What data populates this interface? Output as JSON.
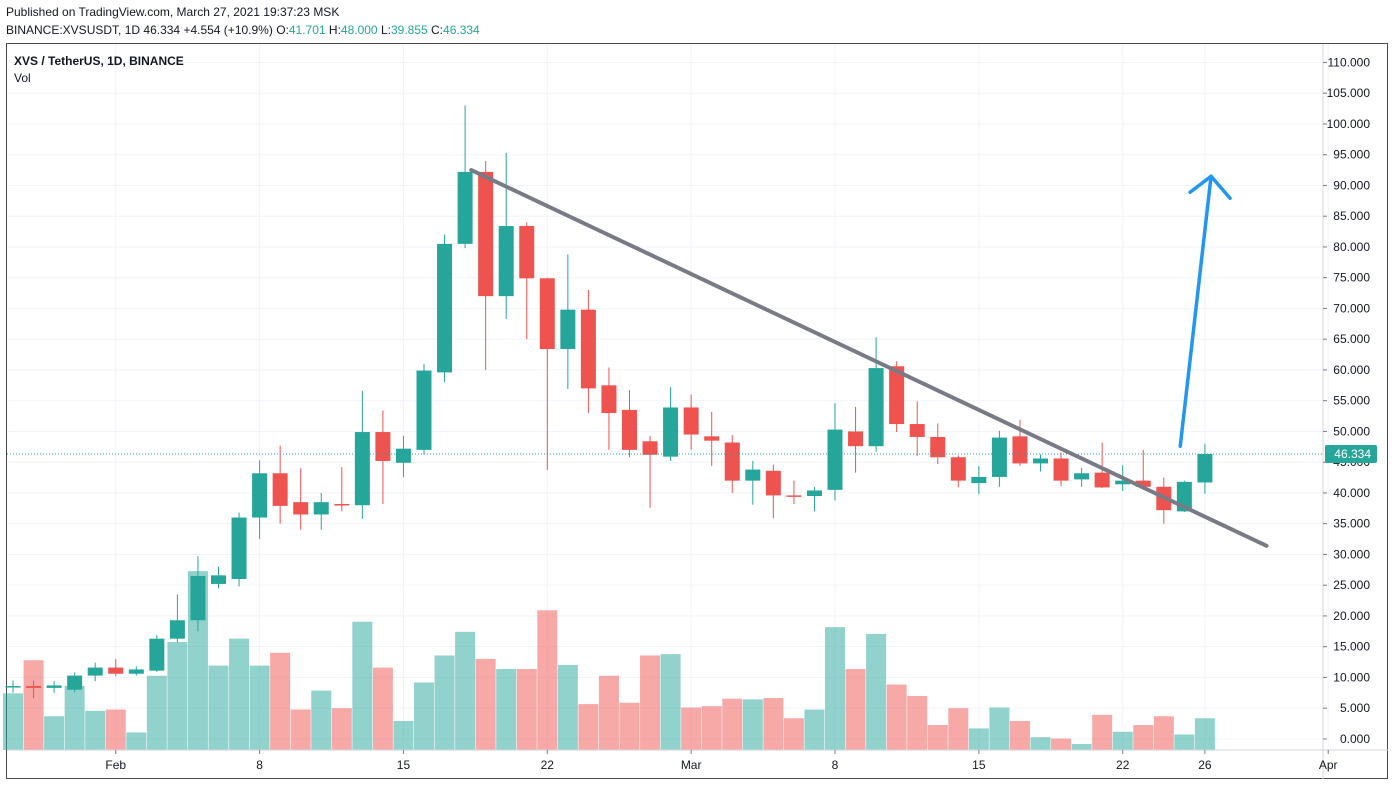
{
  "header": {
    "published": "Published on TradingView.com, March 27, 2021 19:37:23 MSK",
    "symbol_line": "BINANCE:XVSUSDT, 1D",
    "last": "46.334",
    "change": "+4.554 (+10.9%)",
    "o_label": "O:",
    "o": "41.701",
    "h_label": "H:",
    "h": "48.000",
    "l_label": "L:",
    "l": "39.855",
    "c_label": "C:",
    "c": "46.334"
  },
  "legend": {
    "title": "XVS / TetherUS, 1D, BINANCE",
    "volume_label": "Vol"
  },
  "colors": {
    "up": "#26a69a",
    "down": "#ef5350",
    "up_volume": "#26a69a",
    "down_volume": "#ef5350",
    "trendline": "#787b86",
    "projection_arrow": "#2196f3",
    "grid": "#f0f3fa"
  },
  "chart_data": {
    "type": "candlestick",
    "price_axis": {
      "ticks": [
        "110.000",
        "105.000",
        "100.000",
        "95.000",
        "90.000",
        "85.000",
        "80.000",
        "75.000",
        "70.000",
        "65.000",
        "60.000",
        "55.000",
        "50.000",
        "45.000",
        "40.000",
        "35.000",
        "30.000",
        "25.000",
        "20.000",
        "15.000",
        "10.000",
        "5.000",
        "0.000"
      ],
      "current_price_label": "46.334"
    },
    "time_axis": {
      "ticks": [
        {
          "label": "Feb",
          "day": 5
        },
        {
          "label": "8",
          "day": 12
        },
        {
          "label": "15",
          "day": 19
        },
        {
          "label": "22",
          "day": 26
        },
        {
          "label": "Mar",
          "day": 33
        },
        {
          "label": "8",
          "day": 40
        },
        {
          "label": "15",
          "day": 47
        },
        {
          "label": "22",
          "day": 54
        },
        {
          "label": "26",
          "day": 58
        },
        {
          "label": "Apr",
          "day": 64
        }
      ]
    },
    "candles": [
      {
        "o": 8.4,
        "h": 9.5,
        "l": 7.5,
        "c": 8.6,
        "v": 8.4
      },
      {
        "o": 8.6,
        "h": 9.5,
        "l": 6.6,
        "c": 8.3,
        "v": 13.3
      },
      {
        "o": 8.3,
        "h": 9.4,
        "l": 7.5,
        "c": 8.7,
        "v": 5.0
      },
      {
        "o": 8.0,
        "h": 10.8,
        "l": 7.6,
        "c": 10.3,
        "v": 9.5
      },
      {
        "o": 10.3,
        "h": 12.4,
        "l": 9.4,
        "c": 11.6,
        "v": 5.8
      },
      {
        "o": 11.6,
        "h": 13.0,
        "l": 10.2,
        "c": 10.6,
        "v": 6.0
      },
      {
        "o": 10.6,
        "h": 11.8,
        "l": 10.3,
        "c": 11.3,
        "v": 2.6
      },
      {
        "o": 11.1,
        "h": 16.9,
        "l": 10.9,
        "c": 16.3,
        "v": 11.0
      },
      {
        "o": 16.3,
        "h": 23.5,
        "l": 15.7,
        "c": 19.3,
        "v": 16.0
      },
      {
        "o": 19.3,
        "h": 29.7,
        "l": 17.5,
        "c": 26.5,
        "v": 26.5
      },
      {
        "o": 25.2,
        "h": 28.0,
        "l": 24.5,
        "c": 26.6,
        "v": 12.5
      },
      {
        "o": 26.0,
        "h": 36.8,
        "l": 24.8,
        "c": 36.0,
        "v": 16.5
      },
      {
        "o": 36.0,
        "h": 45.3,
        "l": 32.5,
        "c": 43.2,
        "v": 12.5
      },
      {
        "o": 43.2,
        "h": 47.7,
        "l": 35.0,
        "c": 37.9,
        "v": 14.4
      },
      {
        "o": 38.5,
        "h": 44.0,
        "l": 34.0,
        "c": 36.5,
        "v": 6.0
      },
      {
        "o": 36.5,
        "h": 40.0,
        "l": 34.0,
        "c": 38.5,
        "v": 8.8
      },
      {
        "o": 38.2,
        "h": 44.2,
        "l": 37.0,
        "c": 38.0,
        "v": 6.2
      },
      {
        "o": 38.0,
        "h": 56.6,
        "l": 35.8,
        "c": 49.9,
        "v": 19.0
      },
      {
        "o": 49.9,
        "h": 53.4,
        "l": 38.2,
        "c": 45.2,
        "v": 12.2
      },
      {
        "o": 44.9,
        "h": 49.3,
        "l": 42.6,
        "c": 47.2,
        "v": 4.3
      },
      {
        "o": 47.0,
        "h": 61.0,
        "l": 46.2,
        "c": 59.9,
        "v": 10.0
      },
      {
        "o": 59.6,
        "h": 82.0,
        "l": 58.0,
        "c": 80.5,
        "v": 14.0
      },
      {
        "o": 80.5,
        "h": 103.0,
        "l": 79.8,
        "c": 92.2,
        "v": 17.5
      },
      {
        "o": 92.2,
        "h": 94.0,
        "l": 60.0,
        "c": 72.0,
        "v": 13.5
      },
      {
        "o": 72.0,
        "h": 95.3,
        "l": 68.3,
        "c": 83.4,
        "v": 12.0
      },
      {
        "o": 83.4,
        "h": 84.0,
        "l": 65.0,
        "c": 74.9,
        "v": 12.0
      },
      {
        "o": 74.9,
        "h": 75.0,
        "l": 43.7,
        "c": 63.4,
        "v": 20.7
      },
      {
        "o": 63.4,
        "h": 78.8,
        "l": 56.9,
        "c": 69.8,
        "v": 12.6
      },
      {
        "o": 69.8,
        "h": 73.0,
        "l": 53.0,
        "c": 57.0,
        "v": 6.8
      },
      {
        "o": 57.5,
        "h": 60.4,
        "l": 47.0,
        "c": 53.0,
        "v": 11.0
      },
      {
        "o": 53.5,
        "h": 56.7,
        "l": 45.8,
        "c": 47.0,
        "v": 7.0
      },
      {
        "o": 48.4,
        "h": 49.3,
        "l": 37.6,
        "c": 46.2,
        "v": 14.0
      },
      {
        "o": 45.9,
        "h": 57.2,
        "l": 45.2,
        "c": 53.9,
        "v": 14.2
      },
      {
        "o": 53.9,
        "h": 56.0,
        "l": 47.0,
        "c": 49.5,
        "v": 6.3
      },
      {
        "o": 49.2,
        "h": 53.2,
        "l": 44.4,
        "c": 48.5,
        "v": 6.5
      },
      {
        "o": 48.2,
        "h": 49.4,
        "l": 40.0,
        "c": 42.0,
        "v": 7.6
      },
      {
        "o": 42.0,
        "h": 45.2,
        "l": 38.1,
        "c": 43.8,
        "v": 7.5
      },
      {
        "o": 43.6,
        "h": 44.6,
        "l": 35.9,
        "c": 39.6,
        "v": 7.7
      },
      {
        "o": 39.6,
        "h": 42.0,
        "l": 38.2,
        "c": 39.5,
        "v": 4.7
      },
      {
        "o": 39.5,
        "h": 41.0,
        "l": 37.0,
        "c": 40.4,
        "v": 6.0
      },
      {
        "o": 40.5,
        "h": 54.6,
        "l": 38.8,
        "c": 50.3,
        "v": 18.2
      },
      {
        "o": 50.0,
        "h": 54.0,
        "l": 43.3,
        "c": 47.6,
        "v": 12.0
      },
      {
        "o": 47.6,
        "h": 65.3,
        "l": 46.7,
        "c": 60.3,
        "v": 17.2
      },
      {
        "o": 60.6,
        "h": 61.4,
        "l": 49.9,
        "c": 51.2,
        "v": 9.7
      },
      {
        "o": 51.2,
        "h": 54.9,
        "l": 46.0,
        "c": 49.1,
        "v": 8.0
      },
      {
        "o": 49.1,
        "h": 51.3,
        "l": 44.7,
        "c": 45.8,
        "v": 3.7
      },
      {
        "o": 45.8,
        "h": 46.1,
        "l": 40.9,
        "c": 42.0,
        "v": 6.2
      },
      {
        "o": 41.6,
        "h": 44.4,
        "l": 39.8,
        "c": 42.6,
        "v": 3.2
      },
      {
        "o": 42.6,
        "h": 50.1,
        "l": 41.0,
        "c": 49.0,
        "v": 6.3
      },
      {
        "o": 49.2,
        "h": 51.9,
        "l": 44.4,
        "c": 44.8,
        "v": 4.3
      },
      {
        "o": 44.8,
        "h": 46.3,
        "l": 43.5,
        "c": 45.6,
        "v": 1.9
      },
      {
        "o": 45.6,
        "h": 46.6,
        "l": 41.1,
        "c": 42.0,
        "v": 1.7
      },
      {
        "o": 42.2,
        "h": 44.1,
        "l": 41.0,
        "c": 43.2,
        "v": 0.9
      },
      {
        "o": 43.3,
        "h": 48.2,
        "l": 40.8,
        "c": 40.9,
        "v": 5.2
      },
      {
        "o": 41.4,
        "h": 44.5,
        "l": 40.3,
        "c": 42.0,
        "v": 2.7
      },
      {
        "o": 42.0,
        "h": 47.0,
        "l": 40.7,
        "c": 41.0,
        "v": 3.7
      },
      {
        "o": 41.0,
        "h": 42.5,
        "l": 35.0,
        "c": 37.2,
        "v": 5.0
      },
      {
        "o": 37.0,
        "h": 42.0,
        "l": 36.9,
        "c": 41.8,
        "v": 2.3
      },
      {
        "o": 41.701,
        "h": 48.0,
        "l": 39.855,
        "c": 46.334,
        "v": 4.7
      }
    ],
    "trendline": {
      "start": {
        "day": 22.3,
        "price": 92.5
      },
      "end": {
        "day": 61.0,
        "price": 31.4
      }
    },
    "projection_arrow": {
      "start": {
        "day": 56.8,
        "price": 47.6
      },
      "tip": {
        "day": 58.3,
        "price": 91.5
      }
    },
    "ylim": [
      -1.8,
      113.0
    ],
    "grid": true
  }
}
